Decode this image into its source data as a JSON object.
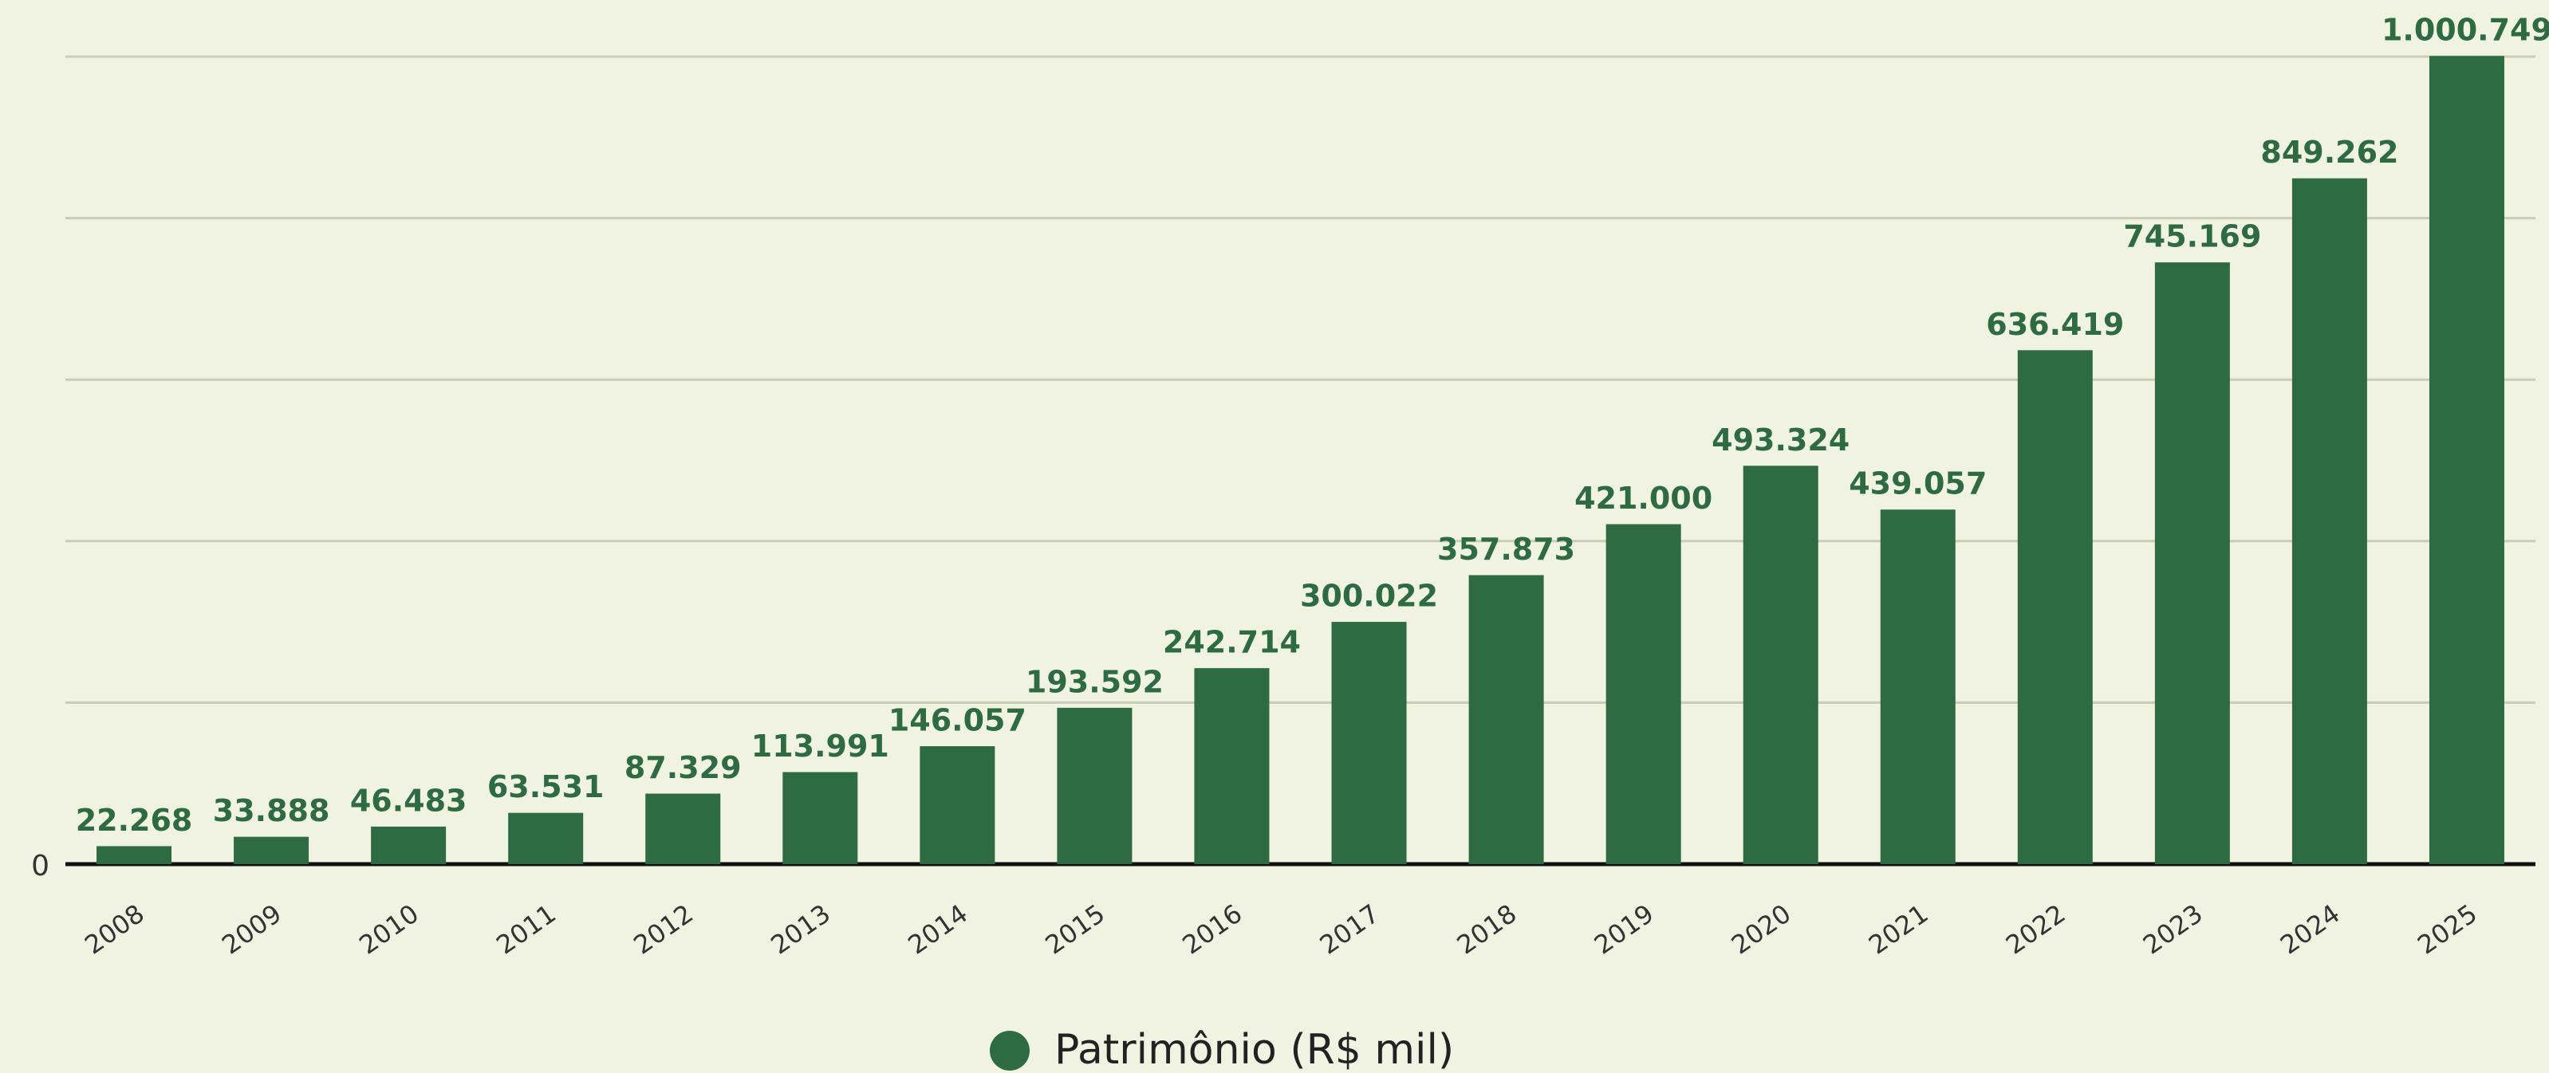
{
  "chart_data": {
    "type": "bar",
    "categories": [
      "2008",
      "2009",
      "2010",
      "2011",
      "2012",
      "2013",
      "2014",
      "2015",
      "2016",
      "2017",
      "2018",
      "2019",
      "2020",
      "2021",
      "2022",
      "2023",
      "2024",
      "2025"
    ],
    "values": [
      22268,
      33888,
      46483,
      63531,
      87329,
      113991,
      146057,
      193592,
      242714,
      300022,
      357873,
      421000,
      493324,
      439057,
      636419,
      745169,
      849262,
      1000749
    ],
    "value_labels": [
      "22.268",
      "33.888",
      "46.483",
      "63.531",
      "87.329",
      "113.991",
      "146.057",
      "193.592",
      "242.714",
      "300.022",
      "357.873",
      "421.000",
      "493.324",
      "439.057",
      "636.419",
      "745.169",
      "849.262",
      "1.000.749"
    ],
    "series_name": "Patrimônio (R$ mil)",
    "color": "#2e6b43",
    "ylim": [
      0,
      1000000
    ],
    "yticks": [
      0
    ],
    "ygrid": [
      200000,
      400000,
      600000,
      800000,
      1000000
    ],
    "grid": true,
    "legend": "bottom"
  }
}
